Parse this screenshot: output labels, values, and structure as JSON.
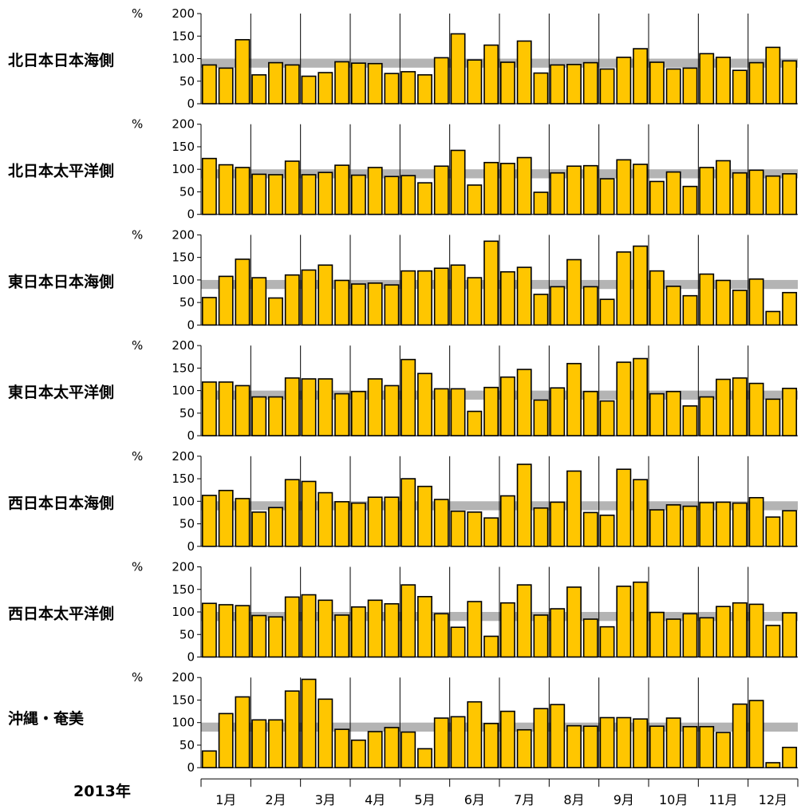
{
  "year_label": "2013年",
  "colors": {
    "bar": "#ffc600",
    "bar_stroke": "#000000",
    "normal_band": "#b4b4b4"
  },
  "chart_data": {
    "type": "bar",
    "description_shared_axes": true,
    "unit_label": "%",
    "ylim": [
      0,
      200
    ],
    "yticks": [
      "0",
      "50",
      "100",
      "150",
      "200"
    ],
    "normal_band": [
      80,
      100
    ],
    "months": [
      "1月",
      "2月",
      "3月",
      "4月",
      "5月",
      "6月",
      "7月",
      "8月",
      "9月",
      "10月",
      "11月",
      "12月"
    ],
    "periods_per_month": 3,
    "panels": [
      {
        "name": "北日本日本海側",
        "values": [
          86,
          79,
          142,
          64,
          91,
          86,
          61,
          69,
          93,
          90,
          89,
          67,
          71,
          64,
          102,
          155,
          97,
          130,
          92,
          139,
          68,
          86,
          87,
          91,
          77,
          103,
          122,
          92,
          77,
          79,
          111,
          103,
          74,
          91,
          125,
          95
        ]
      },
      {
        "name": "北日本太平洋側",
        "values": [
          124,
          110,
          104,
          89,
          88,
          118,
          88,
          93,
          109,
          87,
          104,
          84,
          86,
          70,
          107,
          142,
          65,
          115,
          113,
          126,
          49,
          92,
          107,
          108,
          79,
          121,
          111,
          73,
          94,
          62,
          104,
          119,
          92,
          98,
          85,
          90
        ]
      },
      {
        "name": "東日本日本海側",
        "values": [
          61,
          108,
          146,
          105,
          60,
          111,
          122,
          133,
          99,
          91,
          93,
          89,
          120,
          120,
          126,
          133,
          105,
          186,
          118,
          128,
          68,
          85,
          145,
          85,
          57,
          162,
          175,
          120,
          86,
          65,
          113,
          99,
          77,
          102,
          30,
          72
        ]
      },
      {
        "name": "東日本太平洋側",
        "values": [
          119,
          119,
          111,
          86,
          86,
          128,
          126,
          126,
          93,
          98,
          126,
          111,
          169,
          138,
          104,
          104,
          54,
          107,
          130,
          147,
          79,
          106,
          160,
          98,
          77,
          163,
          171,
          93,
          98,
          66,
          86,
          125,
          128,
          116,
          81,
          105
        ]
      },
      {
        "name": "西日本日本海側",
        "values": [
          113,
          124,
          106,
          76,
          86,
          148,
          144,
          119,
          99,
          96,
          109,
          109,
          150,
          133,
          104,
          78,
          76,
          63,
          112,
          182,
          85,
          98,
          167,
          75,
          69,
          171,
          148,
          81,
          92,
          89,
          97,
          98,
          96,
          108,
          65,
          79
        ]
      },
      {
        "name": "西日本太平洋側",
        "values": [
          119,
          116,
          114,
          92,
          89,
          133,
          138,
          126,
          93,
          111,
          126,
          118,
          160,
          134,
          96,
          66,
          123,
          46,
          120,
          160,
          93,
          107,
          155,
          84,
          67,
          157,
          166,
          99,
          84,
          96,
          87,
          112,
          120,
          117,
          70,
          98
        ]
      },
      {
        "name": "沖縄・奄美",
        "values": [
          37,
          120,
          157,
          106,
          106,
          170,
          196,
          152,
          85,
          61,
          80,
          89,
          79,
          42,
          110,
          113,
          146,
          98,
          125,
          84,
          131,
          140,
          93,
          92,
          111,
          111,
          108,
          92,
          110,
          91,
          91,
          78,
          141,
          149,
          11,
          45
        ]
      }
    ]
  }
}
